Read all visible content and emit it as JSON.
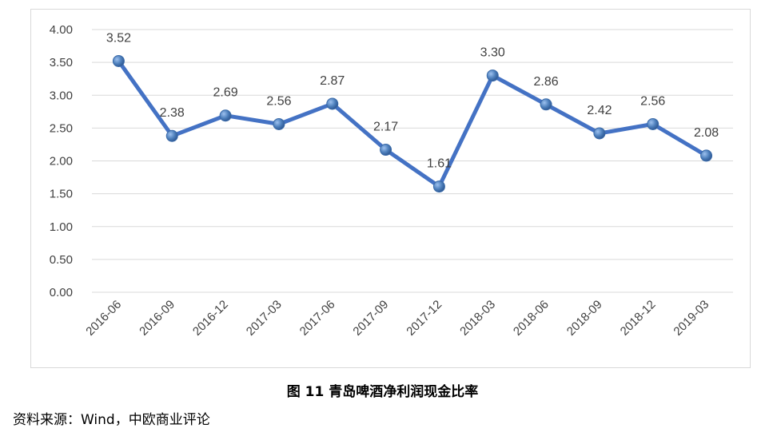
{
  "caption": "图 11 青岛啤酒净利润现金比率",
  "source": "资料来源：Wind，中欧商业评论",
  "colors": {
    "line": "#4472c4",
    "marker": "#4f81bd",
    "grid": "#d9d9d9",
    "text": "#404040"
  },
  "chart_data": {
    "type": "line",
    "title": "",
    "xlabel": "",
    "ylabel": "",
    "categories": [
      "2016-06",
      "2016-09",
      "2016-12",
      "2017-03",
      "2017-06",
      "2017-09",
      "2017-12",
      "2018-03",
      "2018-06",
      "2018-09",
      "2018-12",
      "2019-03"
    ],
    "series": [
      {
        "values": [
          3.52,
          2.38,
          2.69,
          2.56,
          2.87,
          2.17,
          1.61,
          3.3,
          2.86,
          2.42,
          2.56,
          2.08
        ]
      }
    ],
    "data_labels": [
      "3.52",
      "2.38",
      "2.69",
      "2.56",
      "2.87",
      "2.17",
      "1.61",
      "3.30",
      "2.86",
      "2.42",
      "2.56",
      "2.08"
    ],
    "y_ticks": [
      "0.00",
      "0.50",
      "1.00",
      "1.50",
      "2.00",
      "2.50",
      "3.00",
      "3.50",
      "4.00"
    ],
    "ylim": [
      0,
      4
    ],
    "grid": true,
    "legend": "none",
    "x_tick_rotation": "diagonal"
  }
}
